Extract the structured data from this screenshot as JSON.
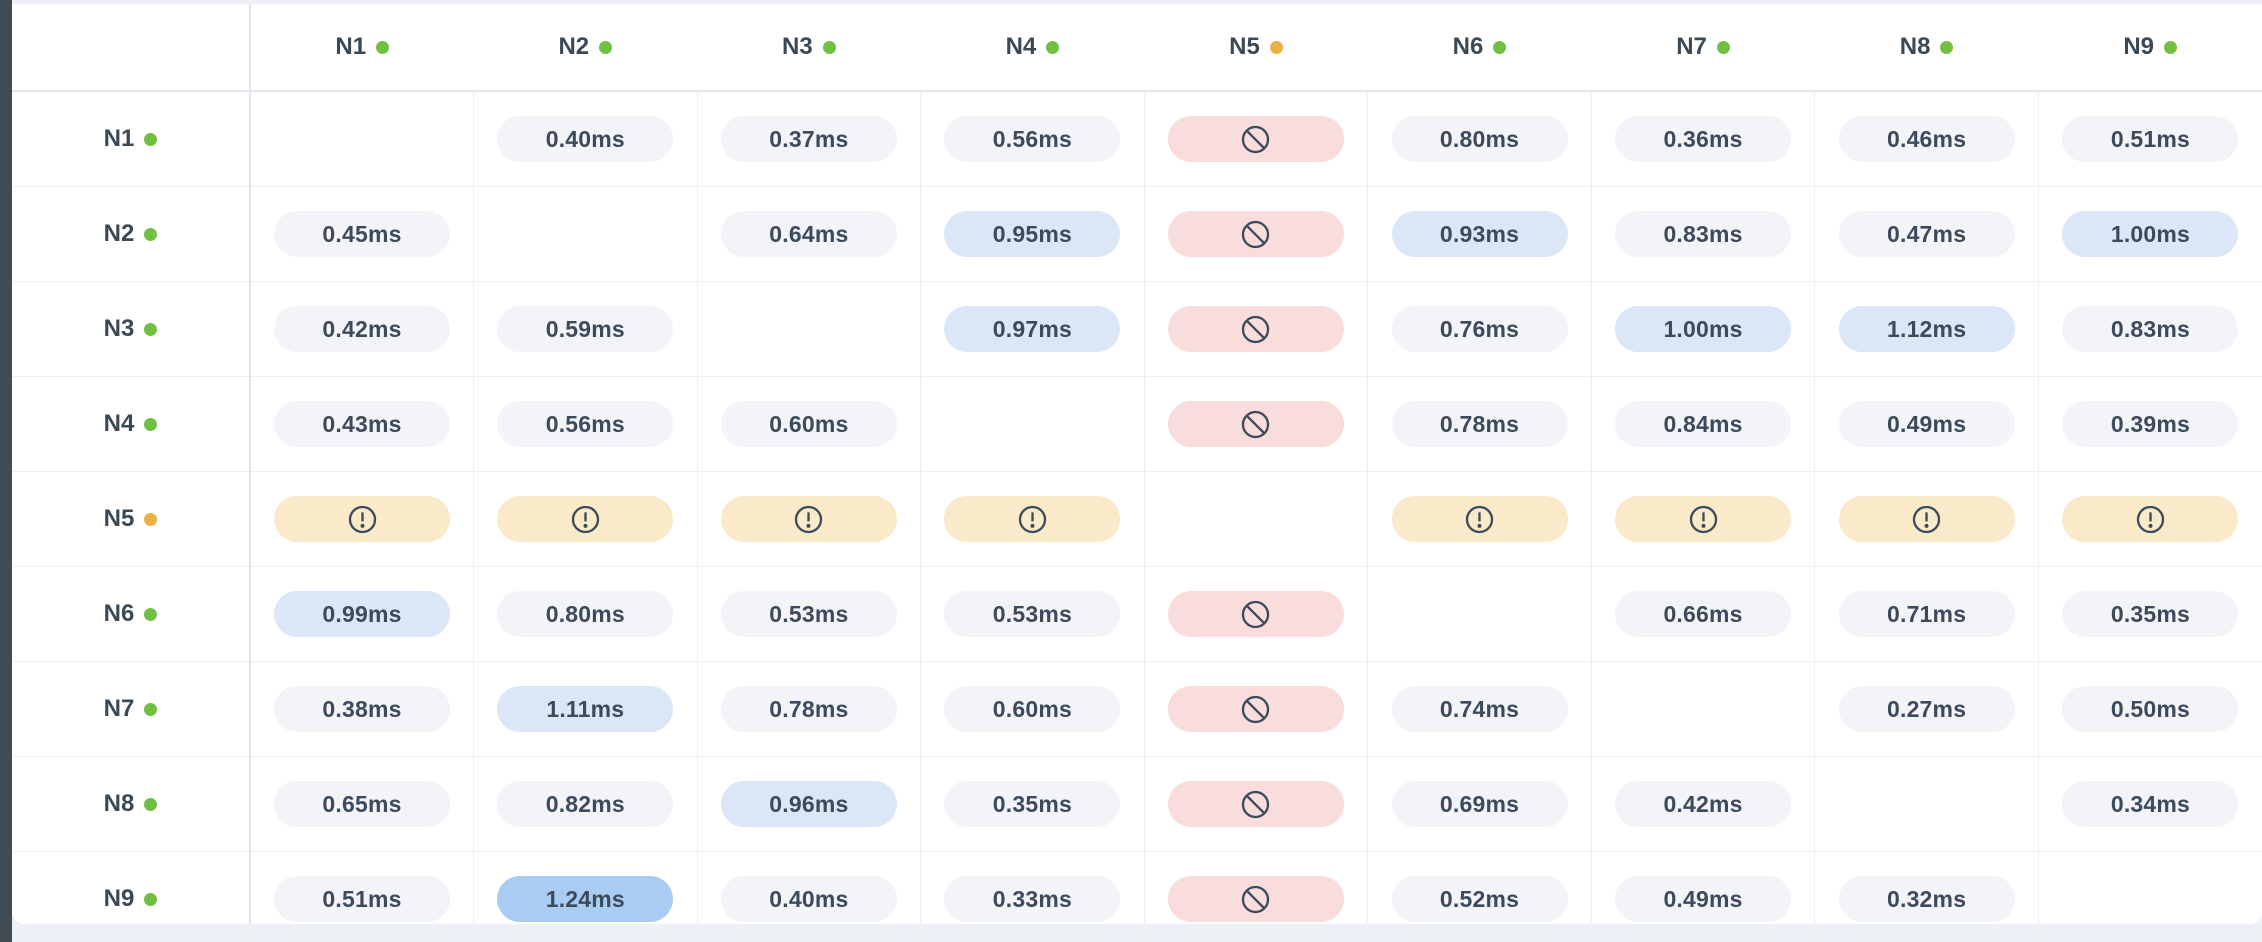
{
  "colors": {
    "status": {
      "online": "#70c043",
      "warning": "#ecb144"
    },
    "pill_gray_bg": "#f2f4f8",
    "pill_blue_bg": "#dbe7f6",
    "pill_blue_strong_bg": "#a9cdf2",
    "pill_pink_bg": "#f9dcdc",
    "pill_amber_bg": "#faeaca",
    "text": "#3d4a5c"
  },
  "thresholds": {
    "blue_from_ms": 0.93,
    "strong_blue_from_ms": 1.2
  },
  "table": {
    "corner_label": "",
    "columns": [
      {
        "id": "N1",
        "status": "online"
      },
      {
        "id": "N2",
        "status": "online"
      },
      {
        "id": "N3",
        "status": "online"
      },
      {
        "id": "N4",
        "status": "online"
      },
      {
        "id": "N5",
        "status": "warning"
      },
      {
        "id": "N6",
        "status": "online"
      },
      {
        "id": "N7",
        "status": "online"
      },
      {
        "id": "N8",
        "status": "online"
      },
      {
        "id": "N9",
        "status": "online"
      }
    ],
    "rows": [
      {
        "id": "N1",
        "status": "online",
        "cells": [
          {
            "type": "self"
          },
          {
            "type": "value",
            "ms": 0.4,
            "label": "0.40ms"
          },
          {
            "type": "value",
            "ms": 0.37,
            "label": "0.37ms"
          },
          {
            "type": "value",
            "ms": 0.56,
            "label": "0.56ms"
          },
          {
            "type": "blocked"
          },
          {
            "type": "value",
            "ms": 0.8,
            "label": "0.80ms"
          },
          {
            "type": "value",
            "ms": 0.36,
            "label": "0.36ms"
          },
          {
            "type": "value",
            "ms": 0.46,
            "label": "0.46ms"
          },
          {
            "type": "value",
            "ms": 0.51,
            "label": "0.51ms"
          }
        ]
      },
      {
        "id": "N2",
        "status": "online",
        "cells": [
          {
            "type": "value",
            "ms": 0.45,
            "label": "0.45ms"
          },
          {
            "type": "self"
          },
          {
            "type": "value",
            "ms": 0.64,
            "label": "0.64ms"
          },
          {
            "type": "value",
            "ms": 0.95,
            "label": "0.95ms"
          },
          {
            "type": "blocked"
          },
          {
            "type": "value",
            "ms": 0.93,
            "label": "0.93ms"
          },
          {
            "type": "value",
            "ms": 0.83,
            "label": "0.83ms"
          },
          {
            "type": "value",
            "ms": 0.47,
            "label": "0.47ms"
          },
          {
            "type": "value",
            "ms": 1.0,
            "label": "1.00ms"
          }
        ]
      },
      {
        "id": "N3",
        "status": "online",
        "cells": [
          {
            "type": "value",
            "ms": 0.42,
            "label": "0.42ms"
          },
          {
            "type": "value",
            "ms": 0.59,
            "label": "0.59ms"
          },
          {
            "type": "self"
          },
          {
            "type": "value",
            "ms": 0.97,
            "label": "0.97ms"
          },
          {
            "type": "blocked"
          },
          {
            "type": "value",
            "ms": 0.76,
            "label": "0.76ms"
          },
          {
            "type": "value",
            "ms": 1.0,
            "label": "1.00ms"
          },
          {
            "type": "value",
            "ms": 1.12,
            "label": "1.12ms"
          },
          {
            "type": "value",
            "ms": 0.83,
            "label": "0.83ms"
          }
        ]
      },
      {
        "id": "N4",
        "status": "online",
        "cells": [
          {
            "type": "value",
            "ms": 0.43,
            "label": "0.43ms"
          },
          {
            "type": "value",
            "ms": 0.56,
            "label": "0.56ms"
          },
          {
            "type": "value",
            "ms": 0.6,
            "label": "0.60ms"
          },
          {
            "type": "self"
          },
          {
            "type": "blocked"
          },
          {
            "type": "value",
            "ms": 0.78,
            "label": "0.78ms"
          },
          {
            "type": "value",
            "ms": 0.84,
            "label": "0.84ms"
          },
          {
            "type": "value",
            "ms": 0.49,
            "label": "0.49ms"
          },
          {
            "type": "value",
            "ms": 0.39,
            "label": "0.39ms"
          }
        ]
      },
      {
        "id": "N5",
        "status": "warning",
        "cells": [
          {
            "type": "warning"
          },
          {
            "type": "warning"
          },
          {
            "type": "warning"
          },
          {
            "type": "warning"
          },
          {
            "type": "self"
          },
          {
            "type": "warning"
          },
          {
            "type": "warning"
          },
          {
            "type": "warning"
          },
          {
            "type": "warning"
          }
        ]
      },
      {
        "id": "N6",
        "status": "online",
        "cells": [
          {
            "type": "value",
            "ms": 0.99,
            "label": "0.99ms"
          },
          {
            "type": "value",
            "ms": 0.8,
            "label": "0.80ms"
          },
          {
            "type": "value",
            "ms": 0.53,
            "label": "0.53ms"
          },
          {
            "type": "value",
            "ms": 0.53,
            "label": "0.53ms"
          },
          {
            "type": "blocked"
          },
          {
            "type": "self"
          },
          {
            "type": "value",
            "ms": 0.66,
            "label": "0.66ms"
          },
          {
            "type": "value",
            "ms": 0.71,
            "label": "0.71ms"
          },
          {
            "type": "value",
            "ms": 0.35,
            "label": "0.35ms"
          }
        ]
      },
      {
        "id": "N7",
        "status": "online",
        "cells": [
          {
            "type": "value",
            "ms": 0.38,
            "label": "0.38ms"
          },
          {
            "type": "value",
            "ms": 1.11,
            "label": "1.11ms"
          },
          {
            "type": "value",
            "ms": 0.78,
            "label": "0.78ms"
          },
          {
            "type": "value",
            "ms": 0.6,
            "label": "0.60ms"
          },
          {
            "type": "blocked"
          },
          {
            "type": "value",
            "ms": 0.74,
            "label": "0.74ms"
          },
          {
            "type": "self"
          },
          {
            "type": "value",
            "ms": 0.27,
            "label": "0.27ms"
          },
          {
            "type": "value",
            "ms": 0.5,
            "label": "0.50ms"
          }
        ]
      },
      {
        "id": "N8",
        "status": "online",
        "cells": [
          {
            "type": "value",
            "ms": 0.65,
            "label": "0.65ms"
          },
          {
            "type": "value",
            "ms": 0.82,
            "label": "0.82ms"
          },
          {
            "type": "value",
            "ms": 0.96,
            "label": "0.96ms"
          },
          {
            "type": "value",
            "ms": 0.35,
            "label": "0.35ms"
          },
          {
            "type": "blocked"
          },
          {
            "type": "value",
            "ms": 0.69,
            "label": "0.69ms"
          },
          {
            "type": "value",
            "ms": 0.42,
            "label": "0.42ms"
          },
          {
            "type": "self"
          },
          {
            "type": "value",
            "ms": 0.34,
            "label": "0.34ms"
          }
        ]
      },
      {
        "id": "N9",
        "status": "online",
        "cells": [
          {
            "type": "value",
            "ms": 0.51,
            "label": "0.51ms"
          },
          {
            "type": "value",
            "ms": 1.24,
            "label": "1.24ms"
          },
          {
            "type": "value",
            "ms": 0.4,
            "label": "0.40ms"
          },
          {
            "type": "value",
            "ms": 0.33,
            "label": "0.33ms"
          },
          {
            "type": "blocked"
          },
          {
            "type": "value",
            "ms": 0.52,
            "label": "0.52ms"
          },
          {
            "type": "value",
            "ms": 0.49,
            "label": "0.49ms"
          },
          {
            "type": "value",
            "ms": 0.32,
            "label": "0.32ms"
          },
          {
            "type": "self"
          }
        ]
      }
    ]
  }
}
